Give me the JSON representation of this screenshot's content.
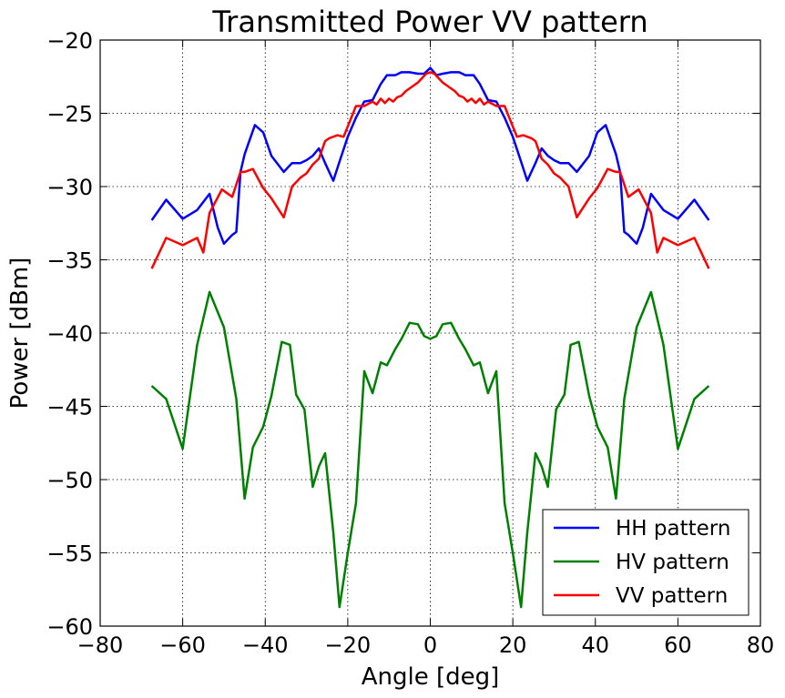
{
  "chart_data": {
    "type": "line",
    "title": "Transmitted Power VV pattern",
    "xlabel": "Angle [deg]",
    "ylabel": "Power [dBm]",
    "xlim": [
      -80,
      80
    ],
    "ylim": [
      -60,
      -20
    ],
    "xticks": [
      -80,
      -60,
      -40,
      -20,
      0,
      20,
      40,
      60,
      80
    ],
    "yticks": [
      -20,
      -25,
      -30,
      -35,
      -40,
      -45,
      -50,
      -55,
      -60
    ],
    "xtick_labels": [
      "−80",
      "−60",
      "−40",
      "−20",
      "0",
      "20",
      "40",
      "60",
      "80"
    ],
    "ytick_labels": [
      "−20",
      "−25",
      "−30",
      "−35",
      "−40",
      "−45",
      "−50",
      "−55",
      "−60"
    ],
    "grid": true,
    "legend_position": "bottom-right",
    "series": [
      {
        "name": "HH pattern",
        "color": "#0000ff",
        "x": [
          -67.5,
          -64,
          -60,
          -56.5,
          -53.5,
          -51.5,
          -50,
          -48,
          -47,
          -46,
          -45,
          -42.5,
          -40.5,
          -38.5,
          -35.5,
          -33.5,
          -31.5,
          -30,
          -28.5,
          -27,
          -25.5,
          -23.5,
          -22,
          -20,
          -18,
          -16,
          -14,
          -12,
          -10.5,
          -8.5,
          -7,
          -5,
          -3,
          -1.5,
          0,
          1.5,
          3,
          5,
          7,
          8.5,
          10.5,
          12,
          14,
          16,
          18,
          20,
          22,
          23.5,
          25.5,
          27,
          28.5,
          30,
          31.5,
          33.5,
          35.5,
          38.5,
          40.5,
          42.5,
          45,
          46,
          47,
          48,
          50,
          51.5,
          53.5,
          56.5,
          60,
          64,
          67.5
        ],
        "y": [
          -32.3,
          -30.9,
          -32.2,
          -31.6,
          -30.5,
          -32.8,
          -33.9,
          -33.3,
          -33.1,
          -29.0,
          -27.8,
          -25.8,
          -26.3,
          -27.9,
          -29.0,
          -28.4,
          -28.4,
          -28.2,
          -27.9,
          -27.4,
          -28.4,
          -29.6,
          -28.3,
          -26.6,
          -25.3,
          -24.2,
          -24.1,
          -23.0,
          -22.4,
          -22.4,
          -22.2,
          -22.2,
          -22.3,
          -22.3,
          -21.9,
          -22.4,
          -22.3,
          -22.2,
          -22.2,
          -22.4,
          -22.4,
          -23.0,
          -24.1,
          -24.2,
          -25.3,
          -26.6,
          -28.3,
          -29.6,
          -28.4,
          -27.4,
          -27.9,
          -28.2,
          -28.4,
          -28.4,
          -29.0,
          -27.9,
          -26.3,
          -25.8,
          -27.8,
          -29.0,
          -33.1,
          -33.3,
          -33.9,
          -32.8,
          -30.5,
          -31.6,
          -32.2,
          -30.9,
          -32.3
        ]
      },
      {
        "name": "HV pattern",
        "color": "#008000",
        "x": [
          -67.5,
          -64,
          -60,
          -56.5,
          -53.5,
          -50,
          -47,
          -45,
          -43,
          -40.5,
          -38.5,
          -36,
          -34,
          -32.5,
          -30.5,
          -28.5,
          -27,
          -25.5,
          -23.5,
          -22,
          -20,
          -18,
          -16,
          -14,
          -12,
          -10.5,
          -8.5,
          -7,
          -5,
          -3,
          -1.5,
          0,
          1.5,
          3,
          5,
          7,
          8.5,
          10.5,
          12,
          14,
          16,
          18,
          20,
          22,
          23.5,
          25.5,
          27,
          28.5,
          30.5,
          32.5,
          34,
          36,
          38.5,
          40.5,
          43,
          45,
          47,
          50,
          53.5,
          56.5,
          60,
          64,
          67.5
        ],
        "y": [
          -43.6,
          -44.5,
          -47.9,
          -40.8,
          -37.2,
          -39.6,
          -44.5,
          -51.3,
          -47.8,
          -46.4,
          -44.3,
          -40.6,
          -40.8,
          -44.2,
          -45.2,
          -50.5,
          -49.1,
          -48.2,
          -53.6,
          -58.7,
          -55.0,
          -51.6,
          -42.6,
          -44.1,
          -42.0,
          -42.2,
          -41.1,
          -40.4,
          -39.3,
          -39.4,
          -40.2,
          -40.4,
          -40.2,
          -39.4,
          -39.3,
          -40.4,
          -41.1,
          -42.2,
          -42.0,
          -44.1,
          -42.6,
          -51.6,
          -55.0,
          -58.7,
          -53.6,
          -48.2,
          -49.1,
          -50.5,
          -45.2,
          -44.2,
          -40.8,
          -40.6,
          -44.3,
          -46.4,
          -47.8,
          -51.3,
          -44.5,
          -39.6,
          -37.2,
          -40.8,
          -47.9,
          -44.5,
          -43.6
        ]
      },
      {
        "name": "VV pattern",
        "color": "#ff0000",
        "x": [
          -67.5,
          -64,
          -60,
          -56.5,
          -55,
          -53.5,
          -50.5,
          -48,
          -46,
          -45,
          -43,
          -40.5,
          -38.5,
          -35.5,
          -33.5,
          -31.5,
          -30,
          -28.5,
          -27,
          -25.5,
          -24.5,
          -22.5,
          -21,
          -20,
          -18,
          -16,
          -14,
          -13,
          -12,
          -11,
          -10,
          -9,
          -8,
          -7,
          -6,
          -5,
          -4,
          -3,
          -2,
          -1,
          0,
          1,
          2,
          3,
          4,
          5,
          6,
          7,
          8,
          9,
          10,
          11,
          12,
          13,
          14,
          16,
          18,
          20,
          21,
          22.5,
          24.5,
          25.5,
          27,
          28.5,
          30,
          31.5,
          33.5,
          35.5,
          38.5,
          40.5,
          43,
          45,
          46,
          48,
          50.5,
          53.5,
          55,
          56.5,
          60,
          64,
          67.5
        ],
        "y": [
          -35.6,
          -33.5,
          -34.0,
          -33.5,
          -34.5,
          -31.8,
          -30.2,
          -30.7,
          -29.0,
          -29.0,
          -28.8,
          -30.1,
          -30.8,
          -32.1,
          -30.0,
          -29.4,
          -29.1,
          -28.5,
          -28.1,
          -26.9,
          -26.7,
          -26.5,
          -26.6,
          -25.9,
          -24.5,
          -24.5,
          -24.2,
          -24.4,
          -24.0,
          -24.3,
          -24.0,
          -24.2,
          -23.9,
          -23.8,
          -23.5,
          -23.3,
          -23.1,
          -22.9,
          -22.6,
          -22.3,
          -22.2,
          -22.3,
          -22.6,
          -22.9,
          -23.1,
          -23.3,
          -23.5,
          -23.8,
          -23.9,
          -24.2,
          -24.0,
          -24.3,
          -24.0,
          -24.4,
          -24.2,
          -24.5,
          -24.5,
          -25.9,
          -26.6,
          -26.5,
          -26.7,
          -26.9,
          -28.1,
          -28.5,
          -29.1,
          -29.4,
          -30.0,
          -32.1,
          -30.8,
          -30.1,
          -28.8,
          -29.0,
          -29.0,
          -30.7,
          -30.2,
          -31.8,
          -34.5,
          -33.5,
          -34.0,
          -33.5,
          -35.6
        ]
      }
    ]
  }
}
